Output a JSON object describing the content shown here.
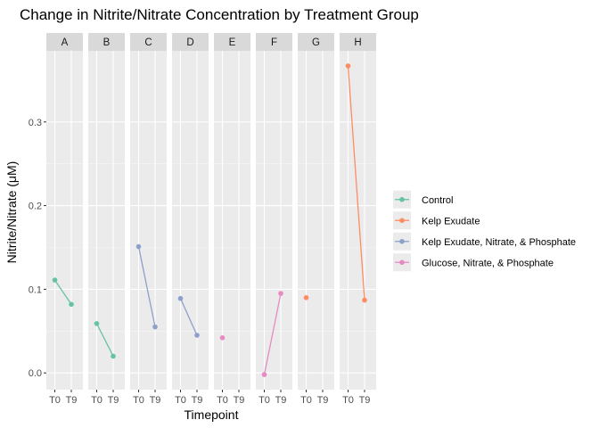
{
  "chart_data": {
    "type": "line",
    "title": "Change in Nitrite/Nitrate Concentration by Treatment Group",
    "xlabel": "Timepoint",
    "ylabel": "Nitrite/Nitrate (μM)",
    "x_ticks": [
      "T0",
      "T9"
    ],
    "y_ticks": [
      "0.0",
      "0.1",
      "0.2",
      "0.3"
    ],
    "ylim": [
      -0.02,
      0.385
    ],
    "grid": true,
    "legend_position": "right",
    "facets": [
      {
        "label": "A",
        "series": "Control",
        "points": [
          {
            "x": "T0",
            "y": 0.111
          },
          {
            "x": "T9",
            "y": 0.082
          }
        ]
      },
      {
        "label": "B",
        "series": "Control",
        "points": [
          {
            "x": "T0",
            "y": 0.059
          },
          {
            "x": "T9",
            "y": 0.02
          }
        ]
      },
      {
        "label": "C",
        "series": "Kelp Exudate, Nitrate, & Phosphate",
        "points": [
          {
            "x": "T0",
            "y": 0.151
          },
          {
            "x": "T9",
            "y": 0.055
          }
        ]
      },
      {
        "label": "D",
        "series": "Kelp Exudate, Nitrate, & Phosphate",
        "points": [
          {
            "x": "T0",
            "y": 0.089
          },
          {
            "x": "T9",
            "y": 0.045
          }
        ]
      },
      {
        "label": "E",
        "series": "Glucose, Nitrate, & Phosphate",
        "points": [
          {
            "x": "T0",
            "y": 0.042
          }
        ]
      },
      {
        "label": "F",
        "series": "Glucose, Nitrate, & Phosphate",
        "points": [
          {
            "x": "T0",
            "y": -0.002
          },
          {
            "x": "T9",
            "y": 0.095
          }
        ]
      },
      {
        "label": "G",
        "series": "Kelp Exudate",
        "points": [
          {
            "x": "T0",
            "y": 0.09
          }
        ]
      },
      {
        "label": "H",
        "series": "Kelp Exudate",
        "points": [
          {
            "x": "T0",
            "y": 0.367
          },
          {
            "x": "T9",
            "y": 0.087
          }
        ]
      }
    ],
    "legend": [
      {
        "name": "Control",
        "color": "#66C2A5"
      },
      {
        "name": "Kelp Exudate",
        "color": "#FC8D62"
      },
      {
        "name": "Kelp Exudate, Nitrate, & Phosphate",
        "color": "#8DA0CB"
      },
      {
        "name": "Glucose, Nitrate, & Phosphate",
        "color": "#E78AC3"
      }
    ]
  }
}
